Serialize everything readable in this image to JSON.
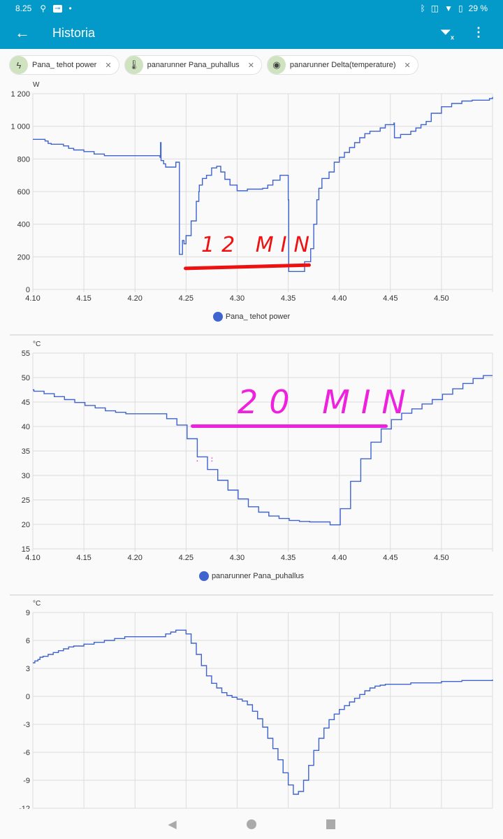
{
  "status_bar": {
    "time": "8.25",
    "battery": "29 %",
    "icons": [
      "location-icon",
      "vpn-key-icon",
      "dot-icon",
      "bluetooth-icon",
      "vibrate-icon",
      "wifi-icon",
      "battery-icon"
    ]
  },
  "app_bar": {
    "title": "Historia",
    "back_icon": "arrow-left-icon",
    "actions": [
      "filter-clear-icon",
      "more-vert-icon"
    ]
  },
  "chips": [
    {
      "label": "Pana_ tehot power",
      "icon": "lightning-icon"
    },
    {
      "label": "panarunner Pana_puhallus",
      "icon": "thermometer-icon"
    },
    {
      "label": "panarunner Delta(temperature)",
      "icon": "eye-icon"
    }
  ],
  "colors": {
    "accent": "#0399c9",
    "series": "#3f63cf",
    "annotation_red": "#ee1111",
    "annotation_magenta": "#ee22dd"
  },
  "annotations": {
    "chart1": "12 MIN",
    "chart2": "20 MIN"
  },
  "chart_data": [
    {
      "type": "line",
      "step": true,
      "unit": "W",
      "legend": "Pana_ tehot power",
      "ylim": [
        0,
        1200
      ],
      "yticks": [
        "0",
        "200",
        "400",
        "600",
        "800",
        "1 000",
        "1 200"
      ],
      "ytick_values": [
        0,
        200,
        400,
        600,
        800,
        1000,
        1200
      ],
      "xlim": [
        4.1,
        4.55
      ],
      "xticks": [
        "4.10",
        "4.15",
        "4.20",
        "4.25",
        "4.30",
        "4.35",
        "4.40",
        "4.45",
        "4.50"
      ],
      "grid": true,
      "points": [
        [
          4.1,
          920
        ],
        [
          4.112,
          910
        ],
        [
          4.115,
          895
        ],
        [
          4.118,
          890
        ],
        [
          4.13,
          880
        ],
        [
          4.135,
          865
        ],
        [
          4.14,
          855
        ],
        [
          4.15,
          845
        ],
        [
          4.16,
          830
        ],
        [
          4.17,
          820
        ],
        [
          4.2245,
          810
        ],
        [
          4.225,
          900
        ],
        [
          4.2255,
          790
        ],
        [
          4.228,
          770
        ],
        [
          4.23,
          750
        ],
        [
          4.24,
          780
        ],
        [
          4.243,
          780
        ],
        [
          4.2435,
          215
        ],
        [
          4.246,
          215
        ],
        [
          4.2465,
          300
        ],
        [
          4.248,
          280
        ],
        [
          4.25,
          330
        ],
        [
          4.255,
          420
        ],
        [
          4.26,
          540
        ],
        [
          4.2625,
          600
        ],
        [
          4.263,
          640
        ],
        [
          4.266,
          680
        ],
        [
          4.27,
          700
        ],
        [
          4.275,
          745
        ],
        [
          4.28,
          755
        ],
        [
          4.284,
          720
        ],
        [
          4.288,
          675
        ],
        [
          4.293,
          640
        ],
        [
          4.3,
          605
        ],
        [
          4.31,
          615
        ],
        [
          4.325,
          620
        ],
        [
          4.33,
          640
        ],
        [
          4.335,
          670
        ],
        [
          4.342,
          700
        ],
        [
          4.349,
          700
        ],
        [
          4.35,
          550
        ],
        [
          4.3505,
          110
        ],
        [
          4.365,
          110
        ],
        [
          4.366,
          170
        ],
        [
          4.372,
          250
        ],
        [
          4.375,
          400
        ],
        [
          4.378,
          550
        ],
        [
          4.38,
          620
        ],
        [
          4.383,
          680
        ],
        [
          4.39,
          720
        ],
        [
          4.395,
          780
        ],
        [
          4.4,
          810
        ],
        [
          4.405,
          840
        ],
        [
          4.41,
          870
        ],
        [
          4.415,
          900
        ],
        [
          4.42,
          930
        ],
        [
          4.425,
          955
        ],
        [
          4.43,
          970
        ],
        [
          4.44,
          990
        ],
        [
          4.445,
          1010
        ],
        [
          4.4535,
          1020
        ],
        [
          4.454,
          930
        ],
        [
          4.46,
          950
        ],
        [
          4.47,
          970
        ],
        [
          4.475,
          990
        ],
        [
          4.48,
          1010
        ],
        [
          4.485,
          1030
        ],
        [
          4.49,
          1080
        ],
        [
          4.5,
          1120
        ],
        [
          4.51,
          1140
        ],
        [
          4.52,
          1155
        ],
        [
          4.53,
          1160
        ],
        [
          4.547,
          1170
        ],
        [
          4.55,
          1180
        ]
      ]
    },
    {
      "type": "line",
      "step": true,
      "unit": "°C",
      "legend": "panarunner Pana_puhallus",
      "ylim": [
        15,
        55
      ],
      "yticks": [
        "15",
        "20",
        "25",
        "30",
        "35",
        "40",
        "45",
        "50",
        "55"
      ],
      "ytick_values": [
        15,
        20,
        25,
        30,
        35,
        40,
        45,
        50,
        55
      ],
      "xlim": [
        4.1,
        4.55
      ],
      "xticks": [
        "4.10",
        "4.15",
        "4.20",
        "4.25",
        "4.30",
        "4.35",
        "4.40",
        "4.45",
        "4.50"
      ],
      "grid": true,
      "points": [
        [
          4.1,
          47.5
        ],
        [
          4.101,
          47.2
        ],
        [
          4.111,
          46.7
        ],
        [
          4.121,
          46.1
        ],
        [
          4.131,
          45.5
        ],
        [
          4.141,
          44.9
        ],
        [
          4.151,
          44.3
        ],
        [
          4.161,
          43.8
        ],
        [
          4.171,
          43.2
        ],
        [
          4.181,
          42.9
        ],
        [
          4.191,
          42.6
        ],
        [
          4.231,
          41.6
        ],
        [
          4.241,
          40.3
        ],
        [
          4.251,
          37.5
        ],
        [
          4.261,
          33.8
        ],
        [
          4.271,
          31.2
        ],
        [
          4.281,
          29.0
        ],
        [
          4.291,
          27.0
        ],
        [
          4.301,
          25.2
        ],
        [
          4.311,
          23.6
        ],
        [
          4.321,
          22.5
        ],
        [
          4.331,
          21.7
        ],
        [
          4.341,
          21.2
        ],
        [
          4.351,
          20.8
        ],
        [
          4.361,
          20.6
        ],
        [
          4.371,
          20.5
        ],
        [
          4.391,
          19.9
        ],
        [
          4.401,
          23.2
        ],
        [
          4.411,
          28.8
        ],
        [
          4.421,
          33.4
        ],
        [
          4.431,
          36.8
        ],
        [
          4.441,
          39.5
        ],
        [
          4.451,
          41.4
        ],
        [
          4.461,
          42.7
        ],
        [
          4.471,
          43.6
        ],
        [
          4.481,
          44.6
        ],
        [
          4.491,
          45.5
        ],
        [
          4.501,
          46.6
        ],
        [
          4.511,
          47.7
        ],
        [
          4.521,
          48.8
        ],
        [
          4.531,
          49.8
        ],
        [
          4.541,
          50.4
        ],
        [
          4.55,
          50.4
        ]
      ]
    },
    {
      "type": "line",
      "step": true,
      "unit": "°C",
      "ylim": [
        -12,
        9
      ],
      "yticks": [
        "-12",
        "-9",
        "-6",
        "-3",
        "0",
        "3",
        "6",
        "9"
      ],
      "ytick_values": [
        -12,
        -9,
        -6,
        -3,
        0,
        3,
        6,
        9
      ],
      "xlim": [
        4.1,
        4.55
      ],
      "grid": true,
      "points": [
        [
          4.1,
          3.6
        ],
        [
          4.102,
          3.8
        ],
        [
          4.105,
          3.95
        ],
        [
          4.107,
          4.2
        ],
        [
          4.11,
          4.3
        ],
        [
          4.115,
          4.5
        ],
        [
          4.12,
          4.7
        ],
        [
          4.125,
          4.9
        ],
        [
          4.13,
          5.1
        ],
        [
          4.135,
          5.3
        ],
        [
          4.14,
          5.4
        ],
        [
          4.15,
          5.6
        ],
        [
          4.16,
          5.8
        ],
        [
          4.17,
          6.0
        ],
        [
          4.18,
          6.2
        ],
        [
          4.19,
          6.4
        ],
        [
          4.23,
          6.7
        ],
        [
          4.235,
          6.9
        ],
        [
          4.24,
          7.1
        ],
        [
          4.25,
          6.7
        ],
        [
          4.255,
          5.7
        ],
        [
          4.26,
          4.5
        ],
        [
          4.265,
          3.3
        ],
        [
          4.27,
          2.2
        ],
        [
          4.275,
          1.4
        ],
        [
          4.28,
          0.9
        ],
        [
          4.285,
          0.4
        ],
        [
          4.29,
          0.1
        ],
        [
          4.295,
          -0.1
        ],
        [
          4.3,
          -0.3
        ],
        [
          4.305,
          -0.5
        ],
        [
          4.31,
          -0.9
        ],
        [
          4.315,
          -1.6
        ],
        [
          4.32,
          -2.4
        ],
        [
          4.325,
          -3.3
        ],
        [
          4.33,
          -4.5
        ],
        [
          4.335,
          -5.6
        ],
        [
          4.34,
          -6.8
        ],
        [
          4.345,
          -8.2
        ],
        [
          4.35,
          -9.5
        ],
        [
          4.355,
          -10.5
        ],
        [
          4.36,
          -10.2
        ],
        [
          4.365,
          -9.0
        ],
        [
          4.37,
          -7.4
        ],
        [
          4.375,
          -5.8
        ],
        [
          4.38,
          -4.5
        ],
        [
          4.385,
          -3.4
        ],
        [
          4.39,
          -2.5
        ],
        [
          4.395,
          -1.9
        ],
        [
          4.4,
          -1.4
        ],
        [
          4.405,
          -1.0
        ],
        [
          4.41,
          -0.6
        ],
        [
          4.415,
          -0.2
        ],
        [
          4.42,
          0.2
        ],
        [
          4.425,
          0.6
        ],
        [
          4.43,
          0.9
        ],
        [
          4.435,
          1.1
        ],
        [
          4.44,
          1.2
        ],
        [
          4.445,
          1.3
        ],
        [
          4.47,
          1.45
        ],
        [
          4.5,
          1.6
        ],
        [
          4.52,
          1.7
        ],
        [
          4.55,
          1.8
        ]
      ]
    }
  ]
}
